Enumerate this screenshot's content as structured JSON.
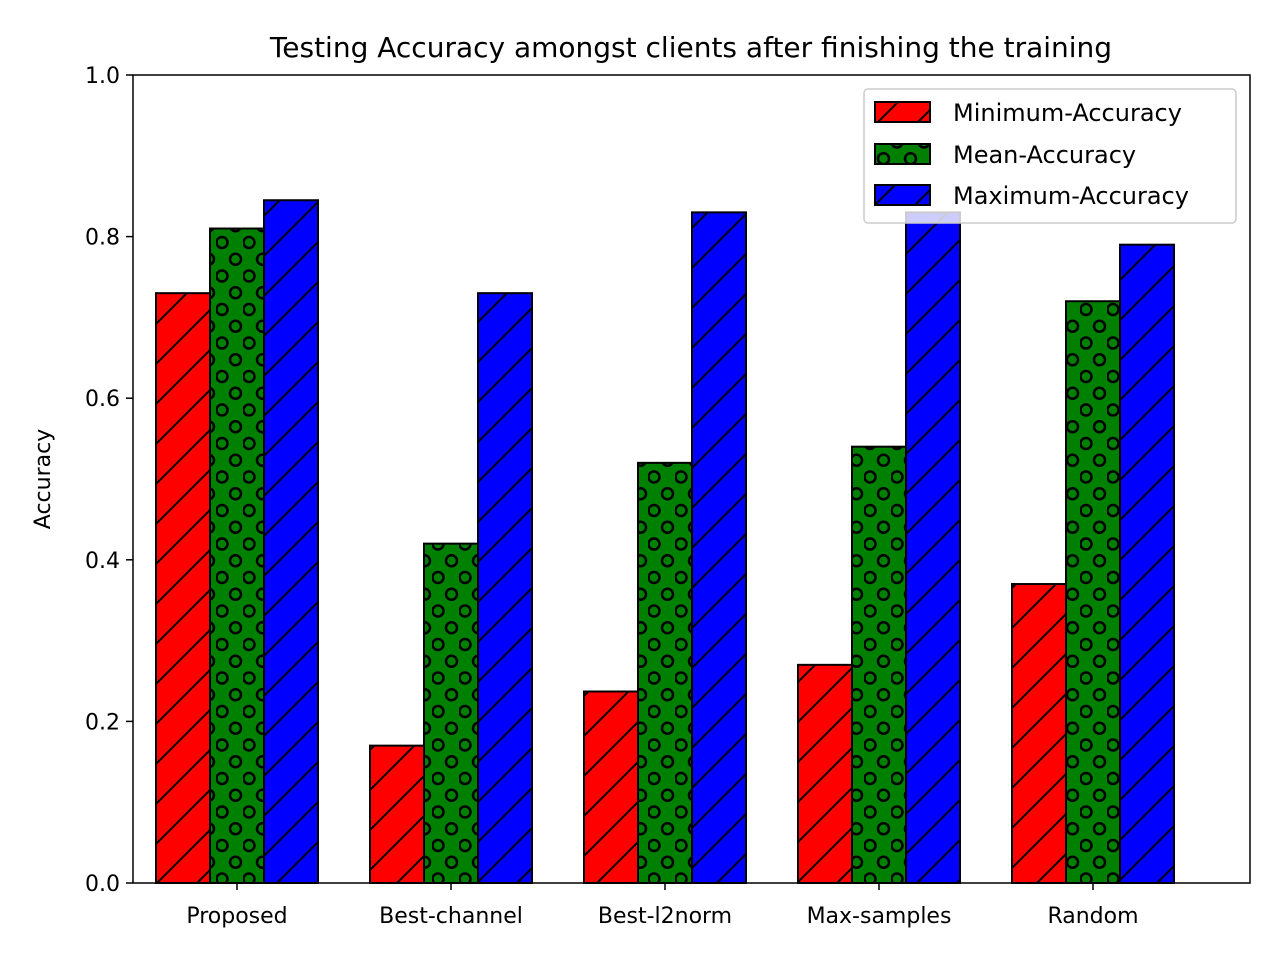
{
  "chart_data": {
    "type": "bar",
    "title": "Testing Accuracy amongst clients after finishing the training",
    "xlabel": "",
    "ylabel": "Accuracy",
    "categories": [
      "Proposed",
      "Best-channel",
      "Best-l2norm",
      "Max-samples",
      "Random"
    ],
    "series": [
      {
        "name": "Minimum-Accuracy",
        "values": [
          0.73,
          0.17,
          0.237,
          0.27,
          0.37
        ],
        "color": "#ff0000",
        "hatch": "diagonal"
      },
      {
        "name": "Mean-Accuracy",
        "values": [
          0.81,
          0.42,
          0.52,
          0.54,
          0.72
        ],
        "color": "#008000",
        "hatch": "circles"
      },
      {
        "name": "Maximum-Accuracy",
        "values": [
          0.845,
          0.73,
          0.83,
          0.83,
          0.79
        ],
        "color": "#0000ff",
        "hatch": "diagonal"
      }
    ],
    "ylim": [
      0,
      1.0
    ],
    "yticks": [
      "0.0",
      "0.2",
      "0.4",
      "0.6",
      "0.8",
      "1.0"
    ],
    "ytick_values": [
      0,
      0.2,
      0.4,
      0.6,
      0.8,
      1.0
    ],
    "grid": false,
    "legend_position": "top-right"
  }
}
